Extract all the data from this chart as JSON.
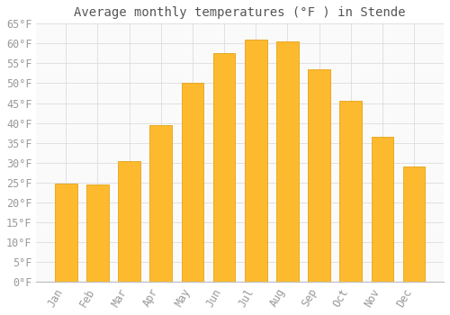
{
  "title": "Average monthly temperatures (°F ) in Stende",
  "months": [
    "Jan",
    "Feb",
    "Mar",
    "Apr",
    "May",
    "Jun",
    "Jul",
    "Aug",
    "Sep",
    "Oct",
    "Nov",
    "Dec"
  ],
  "values": [
    24.8,
    24.4,
    30.5,
    39.5,
    50.0,
    57.5,
    61.0,
    60.5,
    53.5,
    45.5,
    36.5,
    29.0
  ],
  "bar_color_top": "#FDBA2E",
  "bar_color_bottom": "#F5A800",
  "bar_edge_color": "#E09800",
  "background_color": "#FFFFFF",
  "plot_bg_color": "#FAFAFA",
  "grid_color": "#DDDDDD",
  "title_color": "#555555",
  "tick_label_color": "#999999",
  "ylim": [
    0,
    65
  ],
  "yticks": [
    0,
    5,
    10,
    15,
    20,
    25,
    30,
    35,
    40,
    45,
    50,
    55,
    60,
    65
  ],
  "title_fontsize": 10,
  "tick_fontsize": 8.5
}
